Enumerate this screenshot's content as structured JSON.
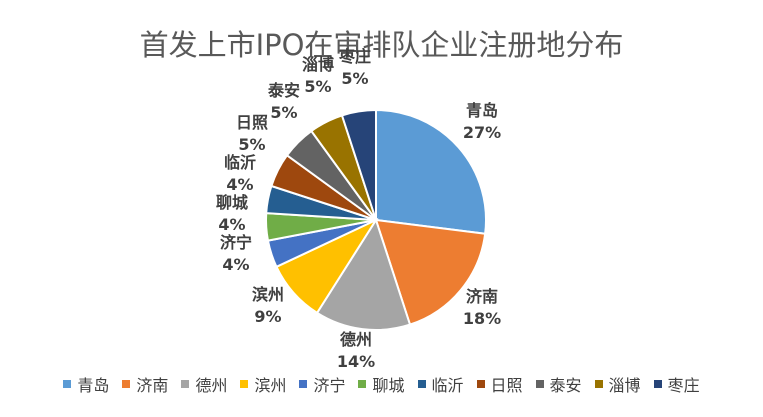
{
  "chart_data": {
    "type": "pie",
    "title": "首发上市IPO在审排队企业注册地分布",
    "legend_position": "bottom",
    "slices": [
      {
        "name": "青岛",
        "value": 27,
        "label": "27%",
        "color": "#5B9BD5"
      },
      {
        "name": "济南",
        "value": 18,
        "label": "18%",
        "color": "#ED7D31"
      },
      {
        "name": "德州",
        "value": 14,
        "label": "14%",
        "color": "#A5A5A5"
      },
      {
        "name": "滨州",
        "value": 9,
        "label": "9%",
        "color": "#FFC000"
      },
      {
        "name": "济宁",
        "value": 4,
        "label": "4%",
        "color": "#4472C4"
      },
      {
        "name": "聊城",
        "value": 4,
        "label": "4%",
        "color": "#70AD47"
      },
      {
        "name": "临沂",
        "value": 4,
        "label": "4%",
        "color": "#255E91"
      },
      {
        "name": "日照",
        "value": 5,
        "label": "5%",
        "color": "#9E480E"
      },
      {
        "name": "泰安",
        "value": 5,
        "label": "5%",
        "color": "#636363"
      },
      {
        "name": "淄博",
        "value": 5,
        "label": "5%",
        "color": "#997300"
      },
      {
        "name": "枣庄",
        "value": 5,
        "label": "5%",
        "color": "#264478"
      }
    ]
  }
}
